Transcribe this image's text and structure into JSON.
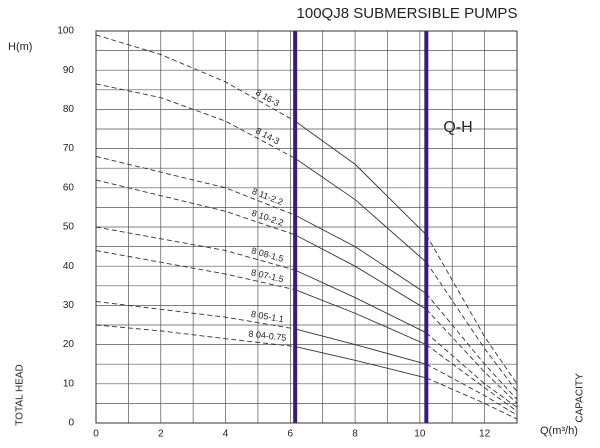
{
  "chart_data": {
    "type": "line",
    "title": "100QJ8 SUBMERSIBLE PUMPS",
    "ylabel": "H(m)",
    "xlabel": "Q(m³/h)",
    "ylabel_side": "TOTAL HEAD",
    "xlabel_side": "CAPACITY",
    "annotation": "Q-H",
    "xlim": [
      0,
      13
    ],
    "ylim": [
      0,
      100
    ],
    "xticks": [
      0,
      2,
      4,
      6,
      8,
      10,
      12
    ],
    "yticks": [
      0,
      10,
      20,
      30,
      40,
      50,
      60,
      70,
      80,
      90,
      100
    ],
    "x_gridlines": [
      0,
      1,
      2,
      3,
      4,
      5,
      6,
      7,
      8,
      9,
      10,
      11,
      12,
      13
    ],
    "y_gridlines": [
      0,
      5,
      10,
      15,
      20,
      25,
      30,
      35,
      40,
      45,
      50,
      55,
      60,
      65,
      70,
      75,
      80,
      85,
      90,
      95,
      100
    ],
    "operating_range": [
      6.15,
      10.2
    ],
    "range_color": "#3a1a7a",
    "x": [
      0,
      2,
      4,
      6.15,
      8,
      10.2,
      12,
      13
    ],
    "series": [
      {
        "name": "8 16-3",
        "color": "#333333",
        "values": [
          99,
          94,
          87,
          77,
          66,
          48,
          22,
          10
        ]
      },
      {
        "name": "8 14-3",
        "color": "#333333",
        "values": [
          86.5,
          83,
          77,
          67.5,
          57,
          41,
          19,
          8
        ]
      },
      {
        "name": "8 11-2.2",
        "color": "#333333",
        "values": [
          68,
          64,
          60,
          53,
          45,
          33,
          15,
          6
        ]
      },
      {
        "name": "8 10-2.2",
        "color": "#333333",
        "values": [
          62,
          58,
          54,
          48,
          40,
          29,
          13,
          5
        ]
      },
      {
        "name": "8 08-1.5",
        "color": "#333333",
        "values": [
          50,
          47,
          44,
          39,
          32,
          23,
          10,
          4
        ]
      },
      {
        "name": "8 07-1.5",
        "color": "#333333",
        "values": [
          44,
          41,
          38,
          34,
          28,
          20,
          9,
          3
        ]
      },
      {
        "name": "8 05-1.1",
        "color": "#333333",
        "values": [
          31,
          29,
          27,
          24,
          20,
          15,
          7,
          2
        ]
      },
      {
        "name": "8 04-0.75",
        "color": "#333333",
        "values": [
          25,
          23.5,
          21.5,
          19.5,
          16,
          11.5,
          5,
          1
        ]
      }
    ]
  }
}
